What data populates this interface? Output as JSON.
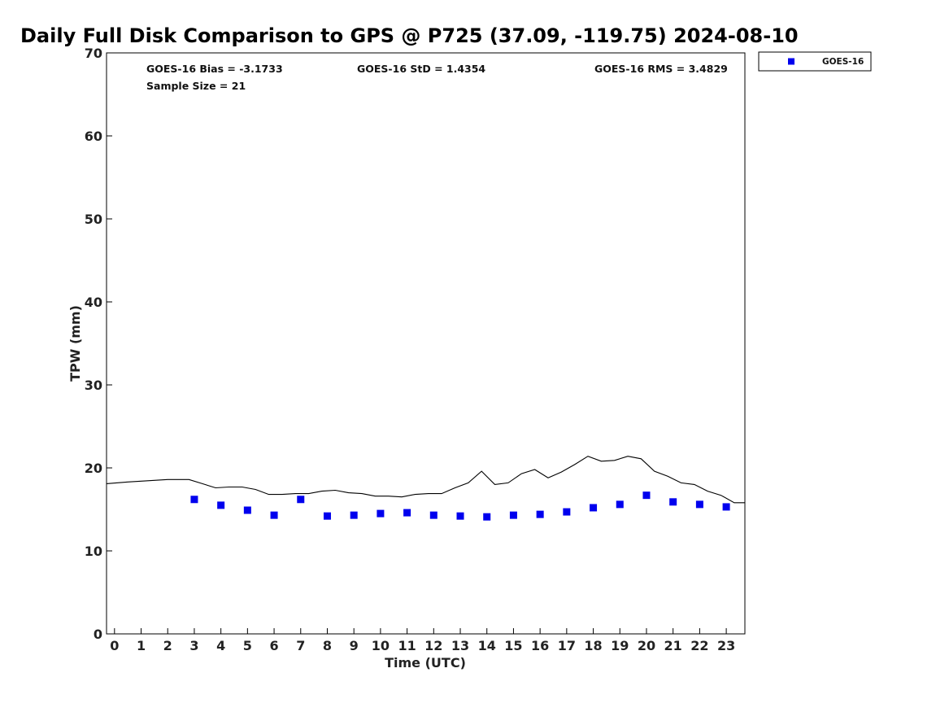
{
  "chart_data": {
    "type": "scatter",
    "title": "Daily Full Disk Comparison to GPS @ P725 (37.09, -119.75) 2024-08-10",
    "xlabel": "Time (UTC)",
    "ylabel": "TPW (mm)",
    "xlim": [
      -0.3,
      23.7
    ],
    "ylim": [
      0,
      70
    ],
    "x_ticks": [
      0,
      1,
      2,
      3,
      4,
      5,
      6,
      7,
      8,
      9,
      10,
      11,
      12,
      13,
      14,
      15,
      16,
      17,
      18,
      19,
      20,
      21,
      22,
      23
    ],
    "y_ticks": [
      0,
      10,
      20,
      30,
      40,
      50,
      60,
      70
    ],
    "grid": false,
    "legend_position": "top-right, outside plot",
    "annotations": {
      "bias": "GOES-16 Bias = -3.1733",
      "std": "GOES-16 StD = 1.4354",
      "rms": "GOES-16 RMS = 3.4829",
      "sample_size": "Sample Size = 21"
    },
    "series": [
      {
        "name": "GOES-16",
        "marker": "square",
        "color": "#0000ee",
        "x": [
          3,
          4,
          5,
          6,
          7,
          8,
          9,
          10,
          11,
          12,
          13,
          14,
          15,
          16,
          17,
          18,
          19,
          20,
          21,
          22,
          23
        ],
        "y": [
          16.2,
          15.5,
          14.9,
          14.3,
          16.2,
          14.2,
          14.3,
          14.5,
          14.6,
          14.3,
          14.2,
          14.1,
          14.3,
          14.4,
          14.7,
          15.2,
          15.6,
          16.7,
          15.9,
          15.6,
          15.3
        ]
      },
      {
        "marker": "line",
        "color": "#000000",
        "x": [
          -0.3,
          0.5,
          1.0,
          1.5,
          2.0,
          2.3,
          2.8,
          3.3,
          3.8,
          4.3,
          4.8,
          5.3,
          5.8,
          6.3,
          6.8,
          7.3,
          7.8,
          8.3,
          8.8,
          9.3,
          9.8,
          10.3,
          10.8,
          11.3,
          11.8,
          12.3,
          12.8,
          13.3,
          13.8,
          14.3,
          14.8,
          15.3,
          15.8,
          16.3,
          16.8,
          17.3,
          17.8,
          18.3,
          18.8,
          19.3,
          19.8,
          20.3,
          20.8,
          21.3,
          21.8,
          22.3,
          22.8,
          23.3,
          23.7
        ],
        "y": [
          18.1,
          18.3,
          18.4,
          18.5,
          18.6,
          18.6,
          18.6,
          18.1,
          17.6,
          17.7,
          17.7,
          17.4,
          16.8,
          16.8,
          16.9,
          16.9,
          17.2,
          17.3,
          17.0,
          16.9,
          16.6,
          16.6,
          16.5,
          16.8,
          16.9,
          16.9,
          17.6,
          18.2,
          19.6,
          18.0,
          18.2,
          19.3,
          19.8,
          18.8,
          19.5,
          20.4,
          21.4,
          20.8,
          20.9,
          21.4,
          21.1,
          19.6,
          19.0,
          18.2,
          18.0,
          17.2,
          16.7,
          15.8,
          15.8
        ]
      }
    ]
  }
}
